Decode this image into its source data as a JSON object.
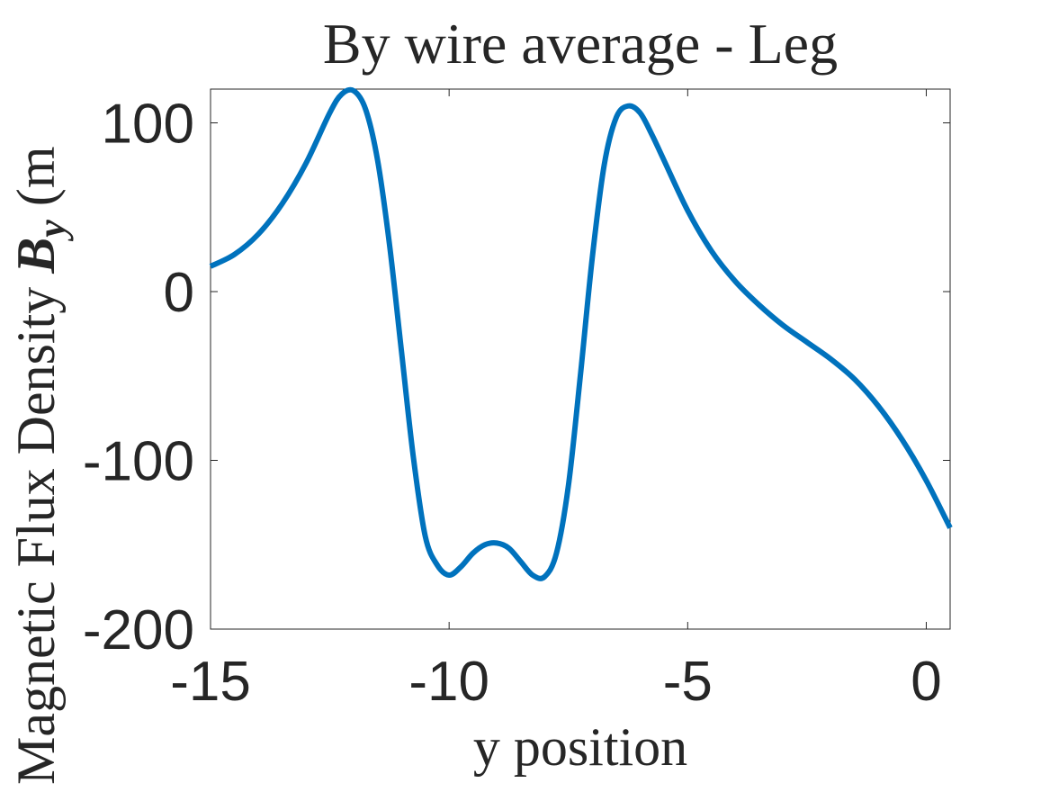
{
  "chart_data": {
    "type": "line",
    "title": "By wire average - Leg",
    "xlabel": "y position",
    "ylabel_prefix": "Magnetic Flux Density ",
    "ylabel_symbol": "B",
    "ylabel_subscript": "y",
    "ylabel_suffix": " (m",
    "xlim": [
      -15,
      0.5
    ],
    "ylim": [
      -200,
      120
    ],
    "xticks": [
      -15,
      -10,
      -5,
      0
    ],
    "xtick_labels": [
      "-15",
      "-10",
      "-5",
      "0"
    ],
    "yticks": [
      -200,
      -100,
      0,
      100
    ],
    "ytick_labels": [
      "-200",
      "-100",
      "0",
      "100"
    ],
    "grid": false,
    "legend": "none",
    "series": [
      {
        "color": "#0072bd",
        "x": [
          -15,
          -14.5,
          -14,
          -13.5,
          -13,
          -12.5,
          -12.25,
          -12.0,
          -11.75,
          -11.5,
          -11.25,
          -11.0,
          -10.75,
          -10.5,
          -10.25,
          -10.0,
          -9.75,
          -9.5,
          -9.25,
          -9.0,
          -8.75,
          -8.5,
          -8.25,
          -8.0,
          -7.75,
          -7.5,
          -7.25,
          -7.0,
          -6.75,
          -6.5,
          -6.25,
          -6.0,
          -5.75,
          -5.5,
          -5.0,
          -4.5,
          -4.0,
          -3.5,
          -3.0,
          -2.5,
          -2.0,
          -1.5,
          -1.0,
          -0.5,
          0.0,
          0.5
        ],
        "y": [
          15,
          22,
          34,
          52,
          76,
          106,
          117,
          119,
          108,
          78,
          28,
          -35,
          -98,
          -145,
          -162,
          -168,
          -163,
          -155,
          -150,
          -149,
          -152,
          -160,
          -168,
          -169,
          -155,
          -115,
          -50,
          20,
          75,
          103,
          110,
          106,
          93,
          78,
          48,
          24,
          6,
          -8,
          -20,
          -30,
          -40,
          -52,
          -68,
          -88,
          -112,
          -140
        ]
      }
    ]
  }
}
